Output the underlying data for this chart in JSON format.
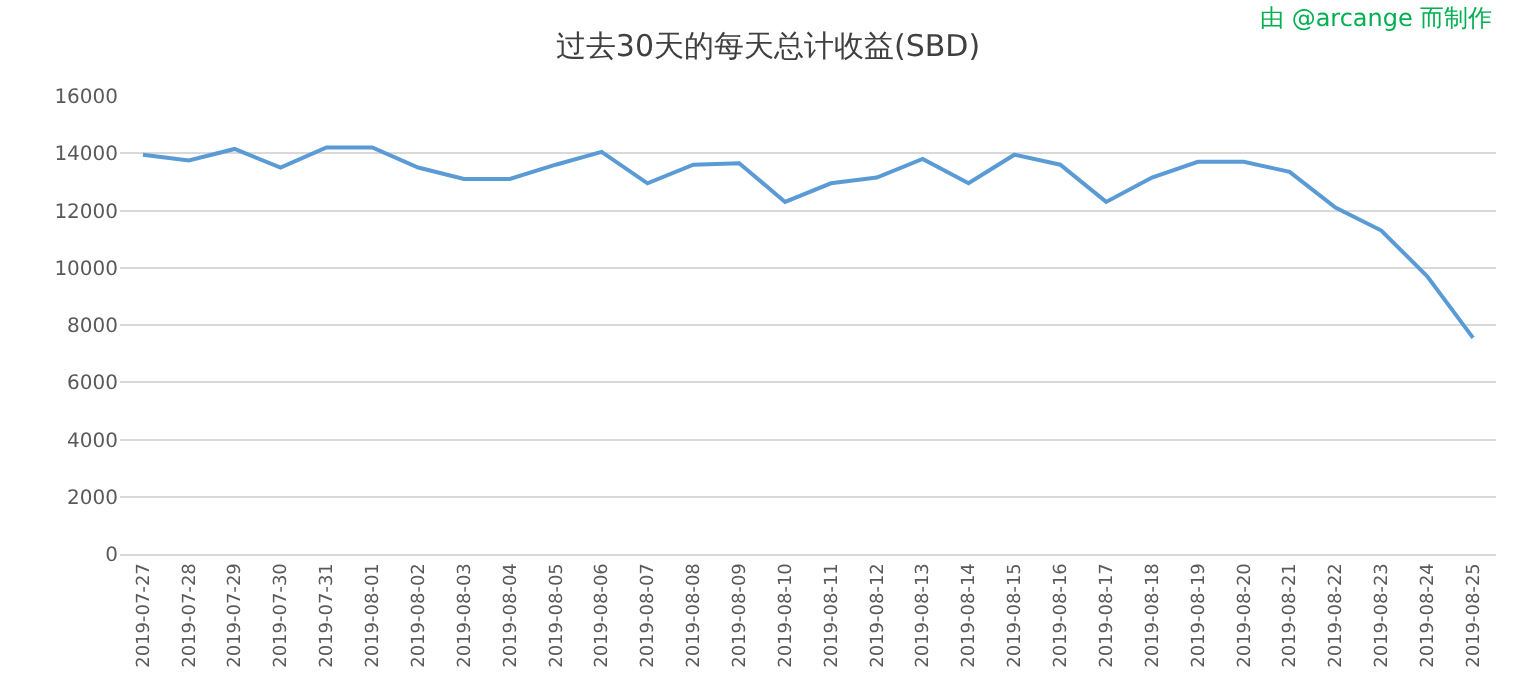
{
  "chart_data": {
    "type": "line",
    "title": "过去30天的每天总计收益(SBD)",
    "annotations": [
      "由 @arcange 而制作"
    ],
    "categories": [
      "2019-07-27",
      "2019-07-28",
      "2019-07-29",
      "2019-07-30",
      "2019-07-31",
      "2019-08-01",
      "2019-08-02",
      "2019-08-03",
      "2019-08-04",
      "2019-08-05",
      "2019-08-06",
      "2019-08-07",
      "2019-08-08",
      "2019-08-09",
      "2019-08-10",
      "2019-08-11",
      "2019-08-12",
      "2019-08-13",
      "2019-08-14",
      "2019-08-15",
      "2019-08-16",
      "2019-08-17",
      "2019-08-18",
      "2019-08-19",
      "2019-08-20",
      "2019-08-21",
      "2019-08-22",
      "2019-08-23",
      "2019-08-24",
      "2019-08-25"
    ],
    "series": [
      {
        "color": "#5b9bd5",
        "values": [
          13950,
          13750,
          14150,
          13500,
          14200,
          14200,
          13500,
          13100,
          13100,
          13600,
          14050,
          12950,
          13600,
          13650,
          12300,
          12950,
          13150,
          13800,
          12950,
          13950,
          13600,
          12300,
          13150,
          13700,
          13700,
          13350,
          12100,
          11300,
          9700,
          7550
        ]
      }
    ],
    "ylim": [
      0,
      16000
    ],
    "yticks": [
      0,
      2000,
      4000,
      6000,
      8000,
      10000,
      12000,
      14000,
      16000
    ],
    "grid": "y",
    "marker": "none",
    "line_style": "solid"
  }
}
